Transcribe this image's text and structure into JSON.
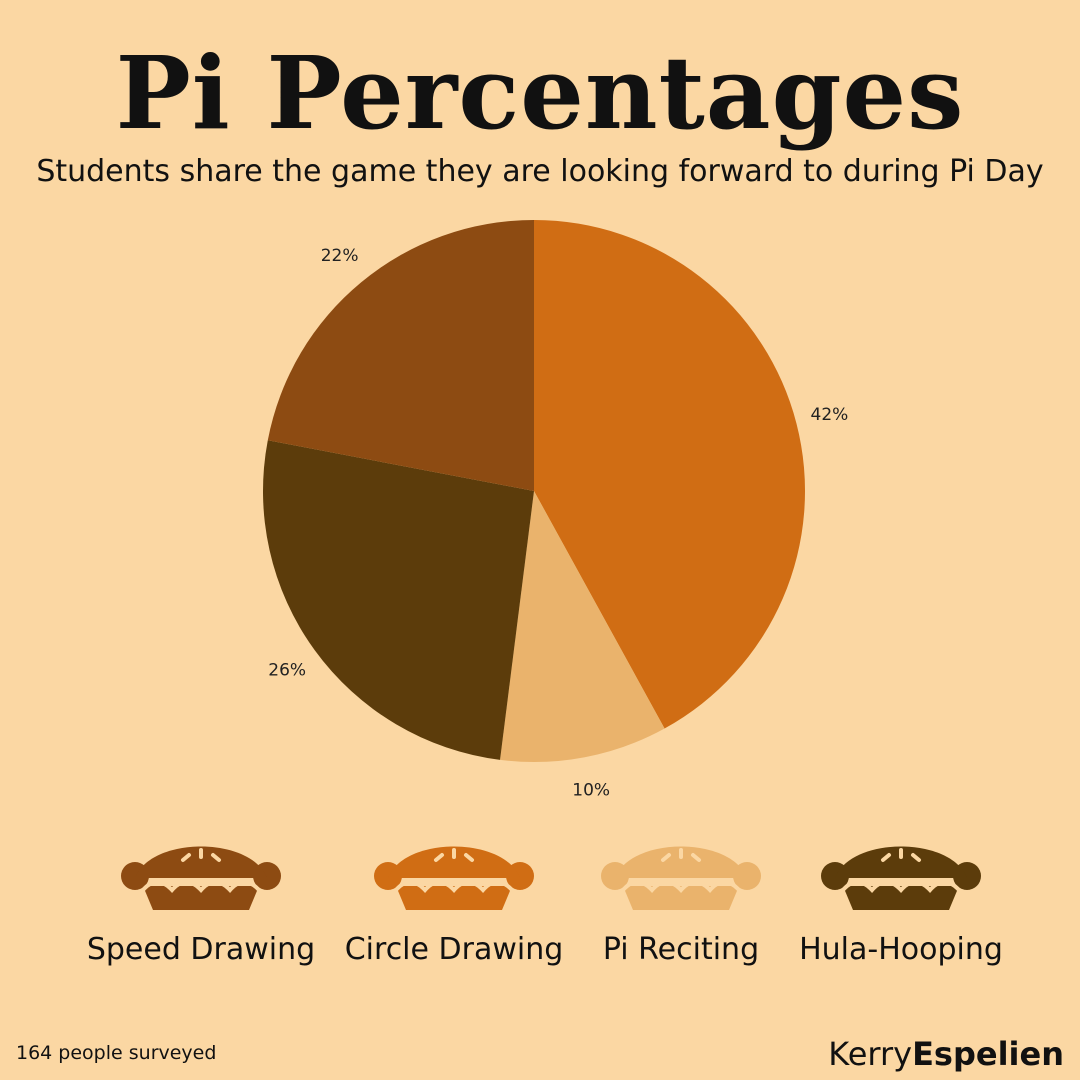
{
  "title": "Pi Percentages",
  "subtitle": "Students share the game they are looking forward to during Pi Day",
  "chart_data": {
    "type": "pie",
    "slices": [
      {
        "label": "Circle Drawing",
        "value": 42,
        "color": "#d06d14",
        "data_label": "42%"
      },
      {
        "label": "Pi Reciting",
        "value": 10,
        "color": "#eab36c",
        "data_label": "10%"
      },
      {
        "label": "Hula-Hooping",
        "value": 26,
        "color": "#5c3c0b",
        "data_label": "26%"
      },
      {
        "label": "Speed Drawing",
        "value": 22,
        "color": "#8d4b12",
        "data_label": "22%"
      }
    ],
    "start_angle_deg": 0,
    "direction": "clockwise"
  },
  "legend": [
    {
      "label": "Speed Drawing",
      "color": "#8d4b12",
      "icon": "pie-icon"
    },
    {
      "label": "Circle Drawing",
      "color": "#d06d14",
      "icon": "pie-icon"
    },
    {
      "label": "Pi Reciting",
      "color": "#eab36c",
      "icon": "pie-icon"
    },
    {
      "label": "Hula-Hooping",
      "color": "#5c3c0b",
      "icon": "pie-icon"
    }
  ],
  "footer": {
    "note": "164 people surveyed",
    "author_first": "Kerry",
    "author_last": "Espelien"
  },
  "colors": {
    "background": "#fbd7a3",
    "text": "#111111"
  }
}
